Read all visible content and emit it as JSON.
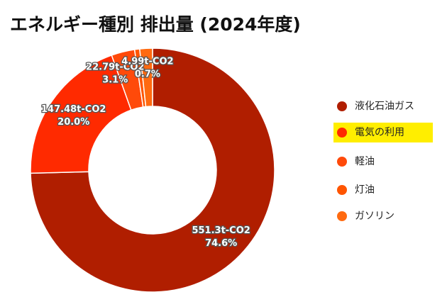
{
  "chart_data": {
    "type": "donut",
    "title": "エネルギー種別 排出量 (2024年度)",
    "categories": [
      "液化石油ガス",
      "電気の利用",
      "軽油",
      "灯油",
      "ガソリン"
    ],
    "values": [
      551.3,
      147.48,
      22.79,
      4.99,
      12.44
    ],
    "value_labels": [
      "551.3t-CO2",
      "147.48t-CO2",
      "22.79t-CO2",
      "4.99t-CO2",
      null
    ],
    "percent_labels": [
      "74.6%",
      "20.0%",
      "3.1%",
      "0.7%",
      null
    ],
    "colors": [
      "#b01e00",
      "#ff2a00",
      "#ff4a0a",
      "#ff5500",
      "#ff6a10"
    ],
    "legend_highlight": 1
  }
}
